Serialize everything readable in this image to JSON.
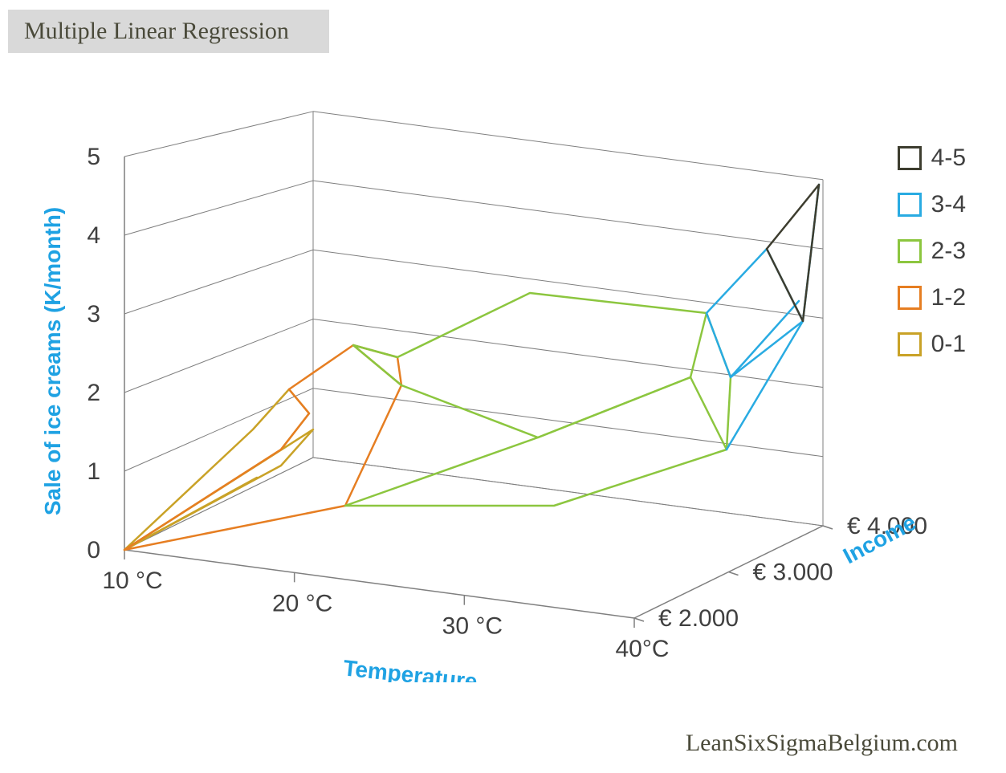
{
  "title": "Multiple Linear Regression",
  "attribution": "LeanSixSigmaBelgium.com",
  "chart": {
    "type": "3d-wireframe-surface",
    "z_axis": {
      "label": "Sale of ice creams (K/month)",
      "ticks": [
        0,
        1,
        2,
        3,
        4,
        5
      ],
      "label_color": "#1fa2e3",
      "label_fontsize": 28,
      "tick_fontsize": 30,
      "tick_color": "#404040"
    },
    "x_axis": {
      "label": "Temperature",
      "ticks": [
        "10 °C",
        "20 °C",
        "30 °C",
        "40°C"
      ],
      "label_color": "#1fa2e3",
      "label_fontsize": 28,
      "tick_fontsize": 30,
      "tick_color": "#404040"
    },
    "y_axis": {
      "label": "Income",
      "ticks": [
        "€ 2.000",
        "€ 3.000",
        "€ 4.000"
      ],
      "label_color": "#1fa2e3",
      "label_fontsize": 28,
      "tick_fontsize": 30,
      "tick_color": "#404040"
    },
    "grid_color": "#7f7f7f",
    "grid_width": 1,
    "line_width": 2.5,
    "background_color": "#ffffff",
    "legend": {
      "position": "right",
      "items": [
        {
          "label": "4-5",
          "color": "#3d3d2f"
        },
        {
          "label": "3-4",
          "color": "#29abe2"
        },
        {
          "label": "2-3",
          "color": "#8cc63f"
        },
        {
          "label": "1-2",
          "color": "#e67e22"
        },
        {
          "label": "0-1",
          "color": "#c9a227"
        }
      ]
    },
    "surface_grid": {
      "x_values": [
        10,
        20,
        30,
        40
      ],
      "y_values": [
        2000,
        3000,
        4000
      ],
      "z_values": [
        [
          0.0,
          0.8,
          1.5,
          2.2
        ],
        [
          0.5,
          1.8,
          2.5,
          3.4
        ],
        [
          1.0,
          2.6,
          3.2,
          4.8
        ]
      ]
    },
    "contour_paths_2d": {
      "comment": "Projected 2D SVG polyline points (viewBox 0 0 1180 720) approximating the 3D wireframe contours by color band",
      "bands": [
        {
          "color": "#c9a227",
          "polylines": [
            "115,555 310,430 345,385 320,355 275,405 115,555",
            "115,555 310,450 350,405 115,555",
            "115,555 280,465 115,555"
          ]
        },
        {
          "color": "#e67e22",
          "polylines": [
            "115,555 390,500 460,350 400,300 320,355 345,385 310,430 115,555",
            "400,300 455,315 460,350"
          ]
        },
        {
          "color": "#8cc63f",
          "polylines": [
            "460,350 630,415 820,340 840,260 620,235 455,315 400,300 460,350",
            "390,500 630,415 820,340 865,430 650,500 390,500",
            "840,260 870,340 865,430"
          ]
        },
        {
          "color": "#29abe2",
          "polylines": [
            "840,260 915,180 960,270 870,340 840,260",
            "865,430 960,270 980,100",
            "870,340 955,245"
          ]
        },
        {
          "color": "#3d3d2f",
          "polylines": [
            "915,180 980,100 960,270 915,180"
          ]
        }
      ]
    }
  }
}
